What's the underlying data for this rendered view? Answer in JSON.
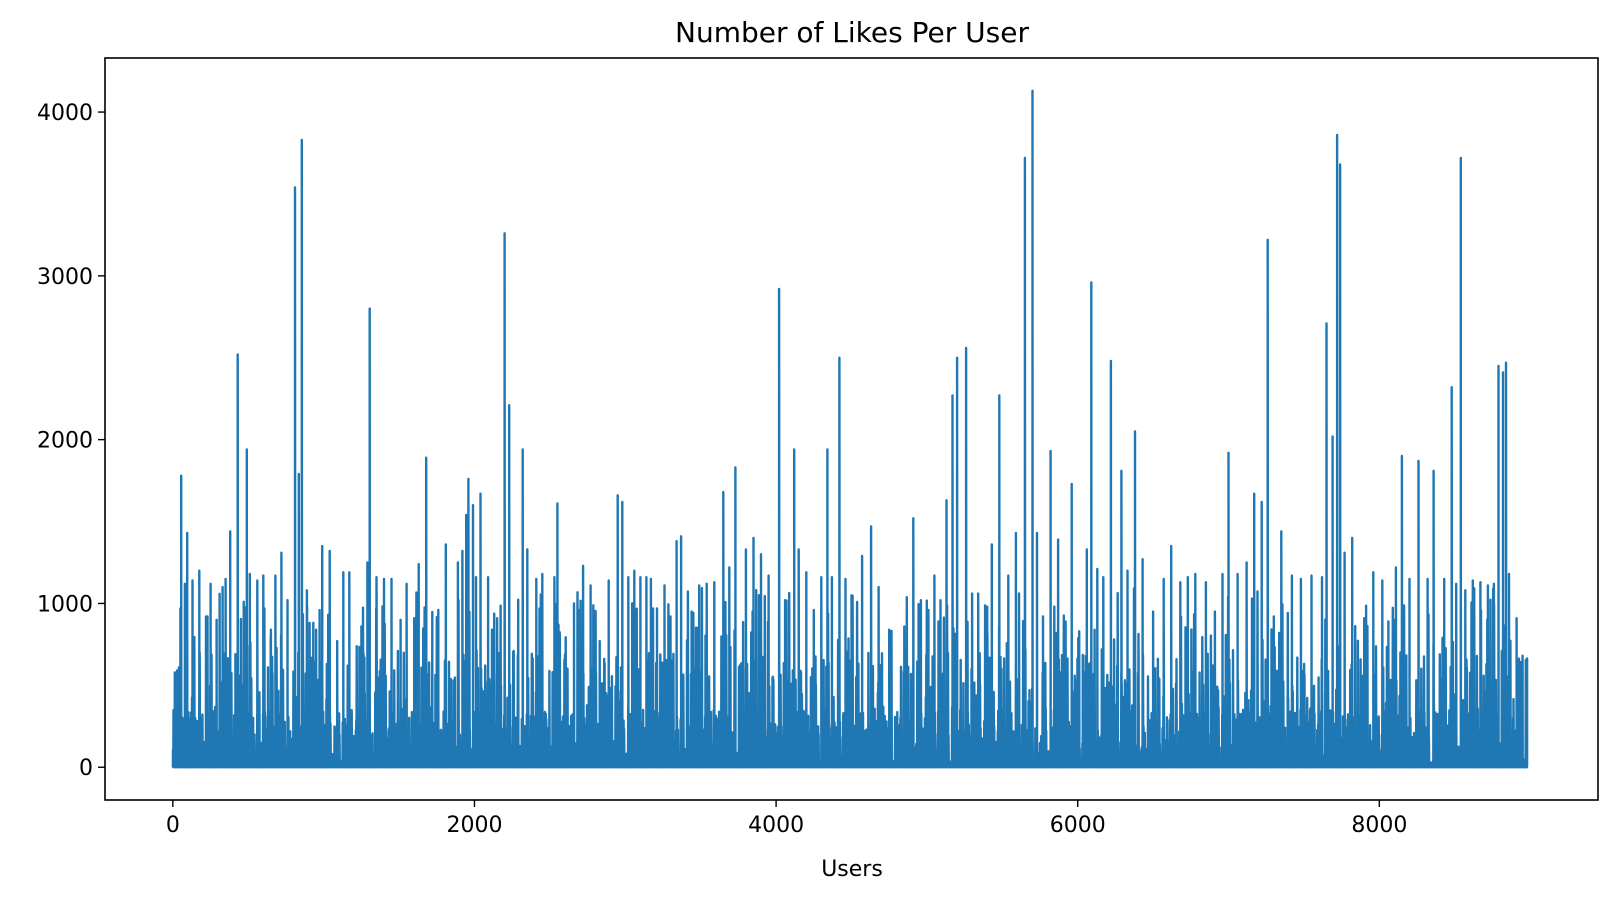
{
  "chart_data": {
    "type": "line",
    "title": "Number of Likes Per User",
    "xlabel": "Users",
    "ylabel": "",
    "xlim": [
      -450,
      9450
    ],
    "ylim": [
      -200,
      4330
    ],
    "grid": false,
    "legend": "none",
    "xticks": [
      0,
      2000,
      4000,
      6000,
      8000
    ],
    "yticks": [
      0,
      1000,
      2000,
      3000,
      4000
    ],
    "xtick_labels": [
      "0",
      "2000",
      "4000",
      "6000",
      "8000"
    ],
    "ytick_labels": [
      "0",
      "1000",
      "2000",
      "3000",
      "4000"
    ],
    "series": [
      {
        "color": "#1f77b4",
        "peaks": [
          [
            10,
            320
          ],
          [
            50,
            970
          ],
          [
            80,
            1120
          ],
          [
            55,
            1780
          ],
          [
            95,
            1430
          ],
          [
            130,
            1140
          ],
          [
            175,
            1200
          ],
          [
            230,
            920
          ],
          [
            250,
            1120
          ],
          [
            290,
            900
          ],
          [
            330,
            1100
          ],
          [
            350,
            1150
          ],
          [
            380,
            1440
          ],
          [
            415,
            690
          ],
          [
            430,
            2520
          ],
          [
            470,
            1010
          ],
          [
            490,
            1940
          ],
          [
            510,
            1180
          ],
          [
            560,
            1140
          ],
          [
            600,
            1170
          ],
          [
            650,
            840
          ],
          [
            680,
            1170
          ],
          [
            720,
            1310
          ],
          [
            760,
            1020
          ],
          [
            810,
            3540
          ],
          [
            835,
            1790
          ],
          [
            855,
            3830
          ],
          [
            890,
            980
          ],
          [
            950,
            840
          ],
          [
            990,
            1350
          ],
          [
            1040,
            1320
          ],
          [
            1090,
            770
          ],
          [
            1130,
            1190
          ],
          [
            1170,
            1190
          ],
          [
            1250,
            860
          ],
          [
            1290,
            1250
          ],
          [
            1305,
            2800
          ],
          [
            1350,
            1160
          ],
          [
            1400,
            1150
          ],
          [
            1450,
            1150
          ],
          [
            1510,
            900
          ],
          [
            1550,
            1120
          ],
          [
            1600,
            910
          ],
          [
            1630,
            1240
          ],
          [
            1680,
            1890
          ],
          [
            1720,
            810
          ],
          [
            1760,
            960
          ],
          [
            1810,
            1360
          ],
          [
            1860,
            530
          ],
          [
            1890,
            1250
          ],
          [
            1920,
            1320
          ],
          [
            1945,
            1540
          ],
          [
            1960,
            1760
          ],
          [
            1990,
            1600
          ],
          [
            2010,
            1160
          ],
          [
            2040,
            1670
          ],
          [
            2090,
            1160
          ],
          [
            2150,
            910
          ],
          [
            2200,
            3260
          ],
          [
            2230,
            2210
          ],
          [
            2290,
            930
          ],
          [
            2320,
            1940
          ],
          [
            2350,
            1330
          ],
          [
            2410,
            1150
          ],
          [
            2450,
            1180
          ],
          [
            2530,
            1160
          ],
          [
            2550,
            1610
          ],
          [
            2600,
            690
          ],
          [
            2660,
            1000
          ],
          [
            2720,
            1230
          ],
          [
            2770,
            1110
          ],
          [
            2830,
            770
          ],
          [
            2890,
            1140
          ],
          [
            2950,
            1660
          ],
          [
            2980,
            1620
          ],
          [
            3020,
            1160
          ],
          [
            3060,
            1200
          ],
          [
            3100,
            1160
          ],
          [
            3140,
            1160
          ],
          [
            3170,
            1150
          ],
          [
            3210,
            970
          ],
          [
            3260,
            1110
          ],
          [
            3300,
            920
          ],
          [
            3340,
            1380
          ],
          [
            3370,
            1410
          ],
          [
            3440,
            950
          ],
          [
            3490,
            1110
          ],
          [
            3540,
            1120
          ],
          [
            3590,
            1130
          ],
          [
            3650,
            1680
          ],
          [
            3690,
            1220
          ],
          [
            3730,
            1830
          ],
          [
            3800,
            1330
          ],
          [
            3850,
            1400
          ],
          [
            3900,
            1300
          ],
          [
            3950,
            1170
          ],
          [
            4020,
            2920
          ],
          [
            4060,
            1020
          ],
          [
            4120,
            1940
          ],
          [
            4150,
            1330
          ],
          [
            4200,
            1190
          ],
          [
            4250,
            960
          ],
          [
            4300,
            1160
          ],
          [
            4340,
            1940
          ],
          [
            4370,
            1160
          ],
          [
            4420,
            2500
          ],
          [
            4460,
            1150
          ],
          [
            4500,
            1050
          ],
          [
            4570,
            1290
          ],
          [
            4630,
            1470
          ],
          [
            4680,
            1100
          ],
          [
            4750,
            840
          ],
          [
            4850,
            860
          ],
          [
            4910,
            1520
          ],
          [
            4960,
            1020
          ],
          [
            5010,
            960
          ],
          [
            5050,
            1170
          ],
          [
            5090,
            1020
          ],
          [
            5130,
            1630
          ],
          [
            5170,
            2270
          ],
          [
            5200,
            2500
          ],
          [
            5260,
            2560
          ],
          [
            5300,
            1060
          ],
          [
            5340,
            1060
          ],
          [
            5400,
            980
          ],
          [
            5430,
            1360
          ],
          [
            5480,
            2270
          ],
          [
            5540,
            1170
          ],
          [
            5590,
            1430
          ],
          [
            5650,
            3720
          ],
          [
            5700,
            4130
          ],
          [
            5730,
            1430
          ],
          [
            5770,
            920
          ],
          [
            5820,
            1930
          ],
          [
            5870,
            1390
          ],
          [
            5920,
            890
          ],
          [
            5960,
            1730
          ],
          [
            6010,
            830
          ],
          [
            6060,
            1330
          ],
          [
            6090,
            2960
          ],
          [
            6130,
            1210
          ],
          [
            6170,
            1160
          ],
          [
            6220,
            2480
          ],
          [
            6290,
            1810
          ],
          [
            6330,
            1200
          ],
          [
            6380,
            2050
          ],
          [
            6430,
            1270
          ],
          [
            6500,
            950
          ],
          [
            6570,
            1150
          ],
          [
            6620,
            1350
          ],
          [
            6680,
            1130
          ],
          [
            6730,
            1160
          ],
          [
            6780,
            1180
          ],
          [
            6850,
            1130
          ],
          [
            6910,
            950
          ],
          [
            6960,
            1180
          ],
          [
            7000,
            1920
          ],
          [
            7060,
            1180
          ],
          [
            7120,
            1250
          ],
          [
            7170,
            1670
          ],
          [
            7220,
            1620
          ],
          [
            7260,
            3220
          ],
          [
            7300,
            920
          ],
          [
            7350,
            1440
          ],
          [
            7420,
            1170
          ],
          [
            7480,
            1150
          ],
          [
            7550,
            1170
          ],
          [
            7620,
            1160
          ],
          [
            7650,
            2710
          ],
          [
            7690,
            2020
          ],
          [
            7720,
            3860
          ],
          [
            7740,
            3680
          ],
          [
            7770,
            1310
          ],
          [
            7820,
            1400
          ],
          [
            7900,
            910
          ],
          [
            7960,
            1190
          ],
          [
            8020,
            1140
          ],
          [
            8060,
            890
          ],
          [
            8110,
            1220
          ],
          [
            8150,
            1900
          ],
          [
            8200,
            1150
          ],
          [
            8260,
            1870
          ],
          [
            8320,
            1150
          ],
          [
            8360,
            1810
          ],
          [
            8430,
            1150
          ],
          [
            8480,
            2320
          ],
          [
            8510,
            1120
          ],
          [
            8540,
            3720
          ],
          [
            8570,
            1080
          ],
          [
            8620,
            1140
          ],
          [
            8670,
            1130
          ],
          [
            8720,
            1110
          ],
          [
            8760,
            1120
          ],
          [
            8790,
            2450
          ],
          [
            8820,
            2410
          ],
          [
            8840,
            2470
          ],
          [
            8860,
            1180
          ],
          [
            8910,
            910
          ],
          [
            8950,
            460
          ],
          [
            8980,
            20
          ]
        ]
      }
    ]
  }
}
